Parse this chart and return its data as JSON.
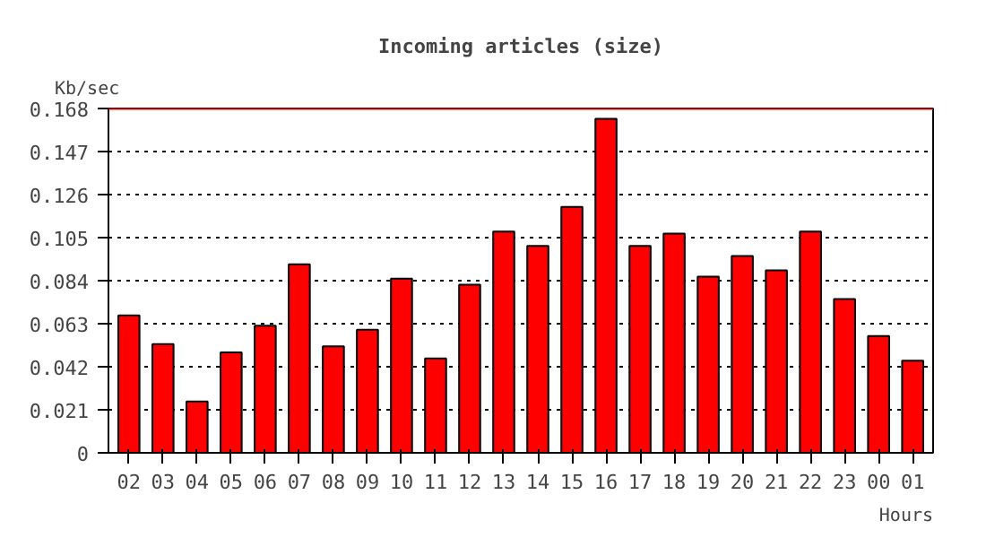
{
  "chart_data": {
    "type": "bar",
    "title": "Incoming articles (size)",
    "ylabel": "Kb/sec",
    "xlabel": "Hours",
    "categories": [
      "02",
      "03",
      "04",
      "05",
      "06",
      "07",
      "08",
      "09",
      "10",
      "11",
      "12",
      "13",
      "14",
      "15",
      "16",
      "17",
      "18",
      "19",
      "20",
      "21",
      "22",
      "23",
      "00",
      "01"
    ],
    "values": [
      0.067,
      0.053,
      0.025,
      0.049,
      0.062,
      0.092,
      0.052,
      0.06,
      0.085,
      0.046,
      0.082,
      0.108,
      0.101,
      0.12,
      0.163,
      0.101,
      0.107,
      0.086,
      0.096,
      0.089,
      0.108,
      0.075,
      0.057,
      0.045
    ],
    "color": "#ff0000",
    "ylim": [
      0,
      0.168
    ],
    "yticks": [
      {
        "value": 0,
        "label": "0"
      },
      0.021,
      0.042,
      0.063,
      0.084,
      0.105,
      0.126,
      0.147,
      0.168
    ],
    "grid": "y",
    "ref_lines": [
      {
        "axis": "y",
        "value": 0.168,
        "color": "#ff0000"
      }
    ]
  }
}
